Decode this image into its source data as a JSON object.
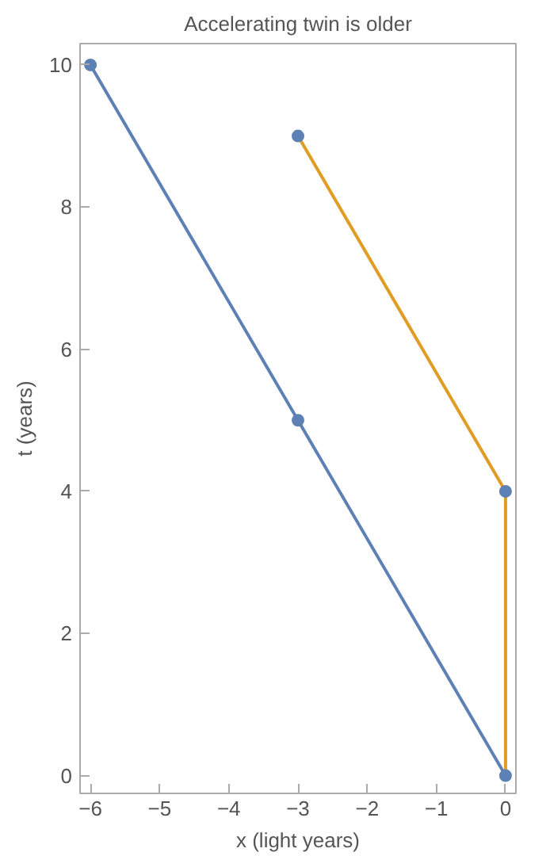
{
  "chart_data": {
    "type": "line",
    "title": "Accelerating twin is older",
    "xlabel": "x (light years)",
    "ylabel": "t (years)",
    "series": [
      {
        "color": "#5e81b5",
        "x": [
          -6,
          -3,
          0
        ],
        "values": [
          10,
          5,
          0
        ]
      },
      {
        "color": "#e19c24",
        "x": [
          -3,
          0,
          0
        ],
        "values": [
          9,
          4,
          0
        ]
      },
      {
        "type": "scatter",
        "marker": "circle",
        "color": "#5e81b5",
        "x": [
          -6,
          -3,
          0,
          -3,
          0
        ],
        "values": [
          10,
          5,
          0,
          9,
          4
        ]
      }
    ],
    "xlim": [
      -6.15,
      0.15
    ],
    "ylim": [
      -0.25,
      10.3
    ],
    "xticks": [
      {
        "value": -6,
        "label": "−6"
      },
      {
        "value": -5,
        "label": "−5"
      },
      {
        "value": -4,
        "label": "−4"
      },
      {
        "value": -3,
        "label": "−3"
      },
      {
        "value": -2,
        "label": "−2"
      },
      {
        "value": -1,
        "label": "−1"
      },
      0
    ],
    "yticks": [
      0,
      2,
      4,
      6,
      8,
      10
    ],
    "grid": false,
    "line_style": "solid"
  }
}
